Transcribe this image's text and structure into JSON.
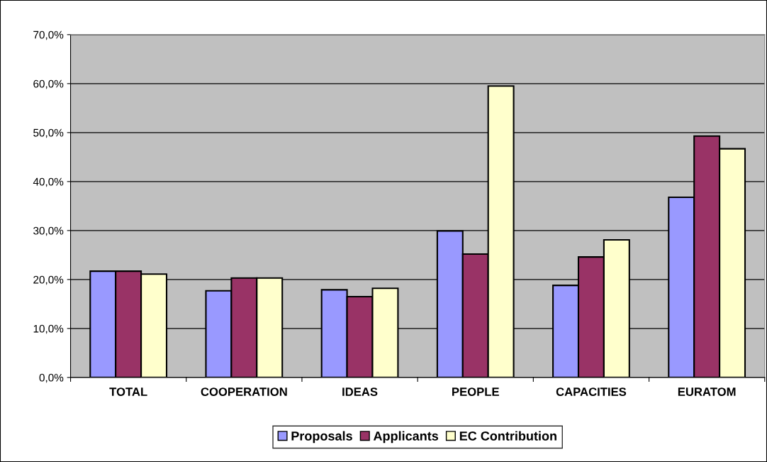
{
  "chart_data": {
    "type": "bar",
    "categories": [
      "TOTAL",
      "COOPERATION",
      "IDEAS",
      "PEOPLE",
      "CAPACITIES",
      "EURATOM"
    ],
    "series": [
      {
        "name": "Proposals",
        "color": "#9999ff",
        "values": [
          21.7,
          17.7,
          17.9,
          29.9,
          18.8,
          36.8
        ]
      },
      {
        "name": "Applicants",
        "color": "#993366",
        "values": [
          21.7,
          20.3,
          16.5,
          25.2,
          24.6,
          49.3
        ]
      },
      {
        "name": "EC Contribution",
        "color": "#ffffcc",
        "values": [
          21.1,
          20.3,
          18.2,
          59.5,
          28.1,
          46.7
        ]
      }
    ],
    "ylim": [
      0,
      70
    ],
    "yticks": [
      {
        "value": 0,
        "label": "0,0%"
      },
      {
        "value": 10,
        "label": "10,0%"
      },
      {
        "value": 20,
        "label": "20,0%"
      },
      {
        "value": 30,
        "label": "30,0%"
      },
      {
        "value": 40,
        "label": "40,0%"
      },
      {
        "value": 50,
        "label": "50,0%"
      },
      {
        "value": 60,
        "label": "60,0%"
      },
      {
        "value": 70,
        "label": "70,0%"
      }
    ],
    "grid": "y",
    "legend": "bottom"
  }
}
